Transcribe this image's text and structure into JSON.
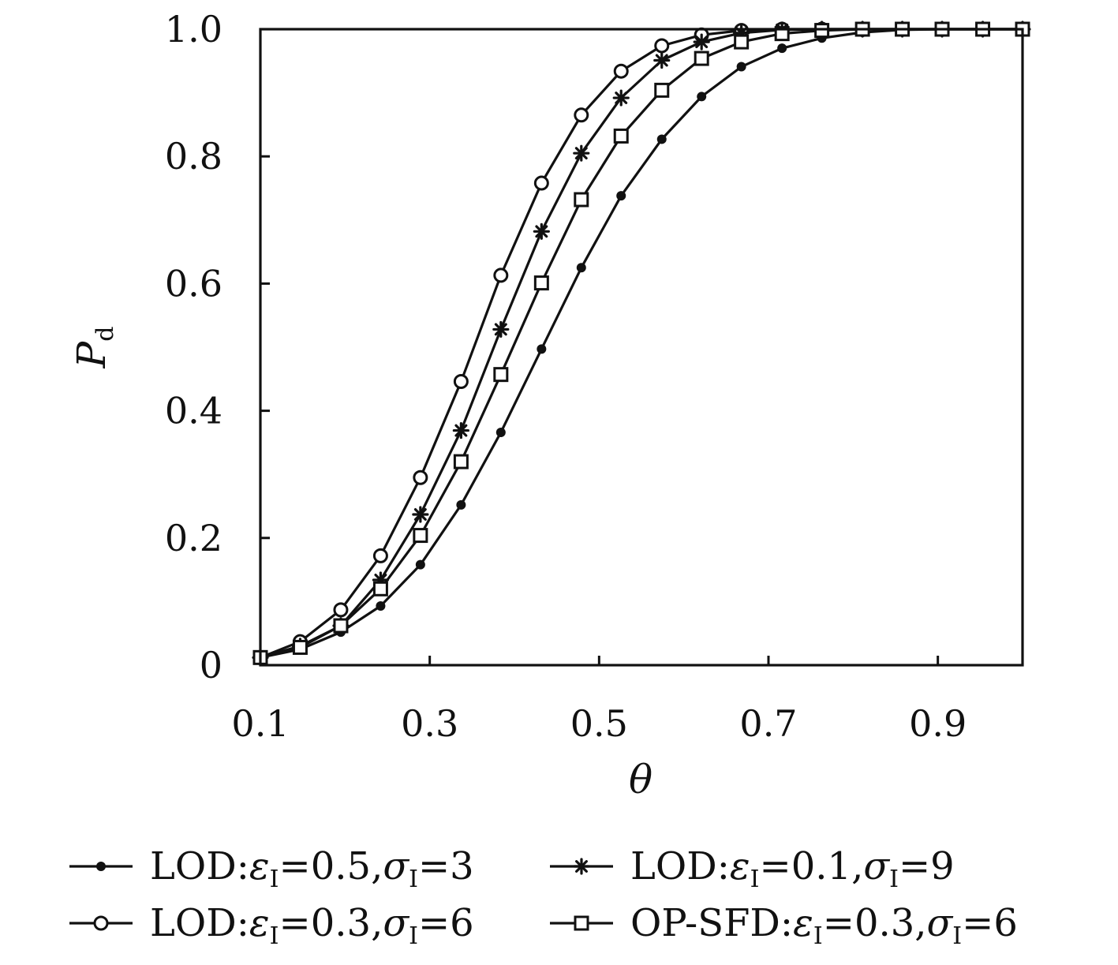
{
  "chart_data": {
    "type": "line",
    "xlabel": "θ",
    "ylabel": "P",
    "ylabel_sub": "d",
    "xlim": [
      0.1,
      1.0
    ],
    "ylim": [
      0,
      1.0
    ],
    "xticks": [
      0.1,
      0.3,
      0.5,
      0.7,
      0.9
    ],
    "xtick_labels": [
      "0.1",
      "0.3",
      "0.5",
      "0.7",
      "0.9"
    ],
    "yticks": [
      0,
      0.2,
      0.4,
      0.6,
      0.8,
      1.0
    ],
    "ytick_labels": [
      "0",
      "0.2",
      "0.4",
      "0.6",
      "0.8",
      "1.0"
    ],
    "grid": false,
    "legend_position": "bottom",
    "x": [
      0.1,
      0.147,
      0.195,
      0.242,
      0.289,
      0.337,
      0.384,
      0.432,
      0.479,
      0.526,
      0.574,
      0.621,
      0.668,
      0.716,
      0.763,
      0.811,
      0.858,
      0.905,
      0.953,
      1.0
    ],
    "series": [
      {
        "label": {
          "prefix": "LOD:",
          "v1": "=0.5,",
          "v2": "=3"
        },
        "marker": "dot",
        "values": [
          0.012,
          0.025,
          0.052,
          0.093,
          0.158,
          0.252,
          0.366,
          0.497,
          0.625,
          0.738,
          0.827,
          0.894,
          0.941,
          0.97,
          0.986,
          0.995,
          0.999,
          1.0,
          1.0,
          1.0
        ]
      },
      {
        "label": {
          "prefix": "LOD:",
          "v1": "=0.3,",
          "v2": "=6"
        },
        "marker": "circle",
        "values": [
          0.012,
          0.037,
          0.087,
          0.172,
          0.295,
          0.446,
          0.613,
          0.758,
          0.865,
          0.934,
          0.974,
          0.991,
          0.998,
          1.0,
          1.0,
          1.0,
          1.0,
          1.0,
          1.0,
          1.0
        ]
      },
      {
        "label": {
          "prefix": "LOD:",
          "v1": "=0.1,",
          "v2": "=9"
        },
        "marker": "star",
        "values": [
          0.012,
          0.03,
          0.062,
          0.134,
          0.237,
          0.369,
          0.528,
          0.682,
          0.805,
          0.892,
          0.951,
          0.98,
          0.994,
          0.999,
          1.0,
          1.0,
          1.0,
          1.0,
          1.0,
          1.0
        ]
      },
      {
        "label": {
          "prefix": "OP-SFD:",
          "v1": "=0.3,",
          "v2": "=6"
        },
        "marker": "square",
        "values": [
          0.012,
          0.028,
          0.062,
          0.12,
          0.204,
          0.32,
          0.457,
          0.601,
          0.732,
          0.832,
          0.904,
          0.954,
          0.98,
          0.993,
          0.998,
          1.0,
          1.0,
          1.0,
          1.0,
          1.0
        ]
      }
    ]
  }
}
